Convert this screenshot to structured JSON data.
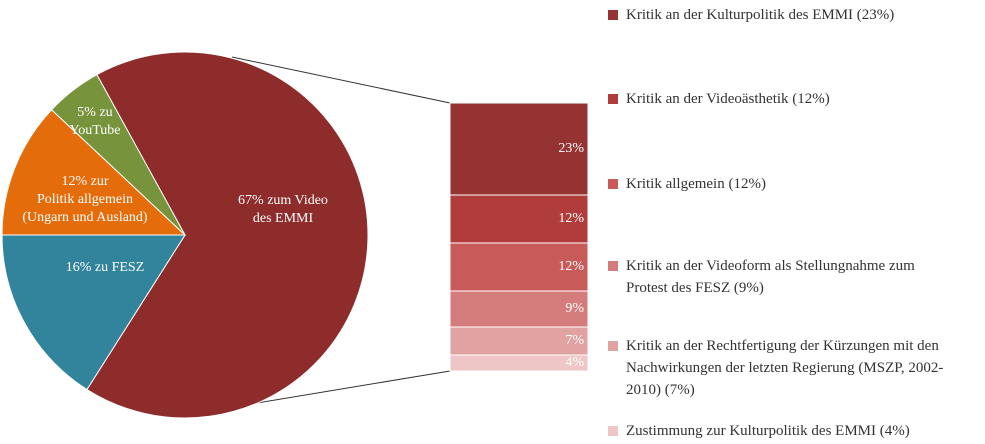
{
  "chart_data": [
    {
      "type": "pie",
      "labels": [
        [
          "67% zum Video",
          "des EMMI"
        ],
        [
          "16% zu FESZ"
        ],
        [
          "12% zur",
          "Politik allgemein",
          "(Ungarn und Ausland)"
        ],
        [
          "5% zu",
          "YouTube"
        ]
      ],
      "values": [
        67,
        16,
        12,
        5
      ],
      "colors": [
        "#8e2b2b",
        "#31849b",
        "#e46c0a",
        "#77933c"
      ]
    },
    {
      "type": "stacked_bar",
      "series": [
        {
          "name": "Kritik an der Kulturpolitik des EMMI (23%)",
          "color": "#953333",
          "values": [
            23
          ],
          "value_labels": [
            "23%"
          ]
        },
        {
          "name": "Kritik an der Videoästhetik (12%)",
          "color": "#b03c3c",
          "values": [
            12
          ],
          "value_labels": [
            "12%"
          ]
        },
        {
          "name": "Kritik allgemein (12%)",
          "color": "#c85a5a",
          "values": [
            12
          ],
          "value_labels": [
            "12%"
          ]
        },
        {
          "name": "Kritik an der Videoform als Stellungnahme zum Protest des FESZ (9%)",
          "color": "#d47c7c",
          "values": [
            9
          ],
          "value_labels": [
            "9%"
          ]
        },
        {
          "name": "Kritik an der Rechtfertigung der Kürzungen mit den Nachwirkungen der letzten Regierung (MSZP, 2002-2010) (7%)",
          "color": "#e1a2a2",
          "values": [
            7
          ],
          "value_labels": [
            "7%"
          ]
        },
        {
          "name": "Zustimmung zur Kulturpolitik des EMMI (4%)",
          "color": "#eec6c6",
          "values": [
            4
          ],
          "value_labels": [
            "4%"
          ]
        }
      ]
    }
  ]
}
